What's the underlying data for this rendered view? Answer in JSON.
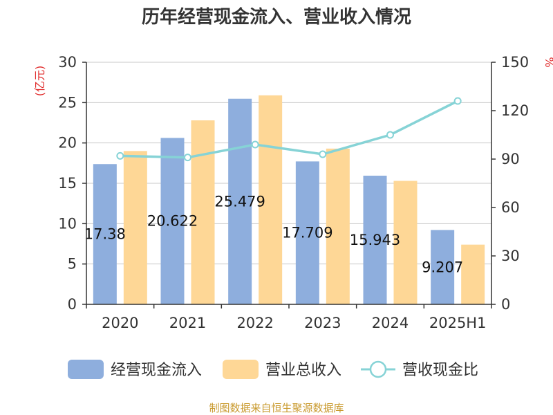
{
  "chart_data": {
    "type": "bar",
    "title": "历年经营现金流入、营业收入情况",
    "categories": [
      "2020",
      "2021",
      "2022",
      "2023",
      "2024",
      "2025H1"
    ],
    "series": [
      {
        "name": "经营现金流入",
        "type": "bar",
        "axis": "left",
        "color": "#8eaedd",
        "values": [
          17.38,
          20.622,
          25.479,
          17.709,
          15.943,
          9.207
        ]
      },
      {
        "name": "营业总收入",
        "type": "bar",
        "axis": "left",
        "color": "#fed796",
        "values": [
          19.0,
          22.8,
          25.9,
          19.3,
          15.3,
          7.4
        ]
      },
      {
        "name": "营收现金比",
        "type": "line",
        "axis": "right",
        "color": "#86d3d6",
        "values": [
          92,
          91,
          99,
          93,
          105,
          126
        ]
      }
    ],
    "data_labels": [
      "17.38",
      "20.622",
      "25.479",
      "17.709",
      "15.943",
      "9.207"
    ],
    "y_left": {
      "unit": "(亿元)",
      "ticks": [
        "0",
        "5",
        "10",
        "15",
        "20",
        "25",
        "30"
      ],
      "ylim": [
        0,
        30
      ]
    },
    "y_right": {
      "unit": "%",
      "ticks": [
        "0",
        "30",
        "60",
        "90",
        "120",
        "150"
      ],
      "ylim": [
        0,
        150
      ]
    },
    "grid": true,
    "legend_position": "bottom",
    "accent_red": "#e02b2b"
  },
  "footer": {
    "source": "制图数据来自恒生聚源数据库",
    "color": "#c99a2e"
  }
}
